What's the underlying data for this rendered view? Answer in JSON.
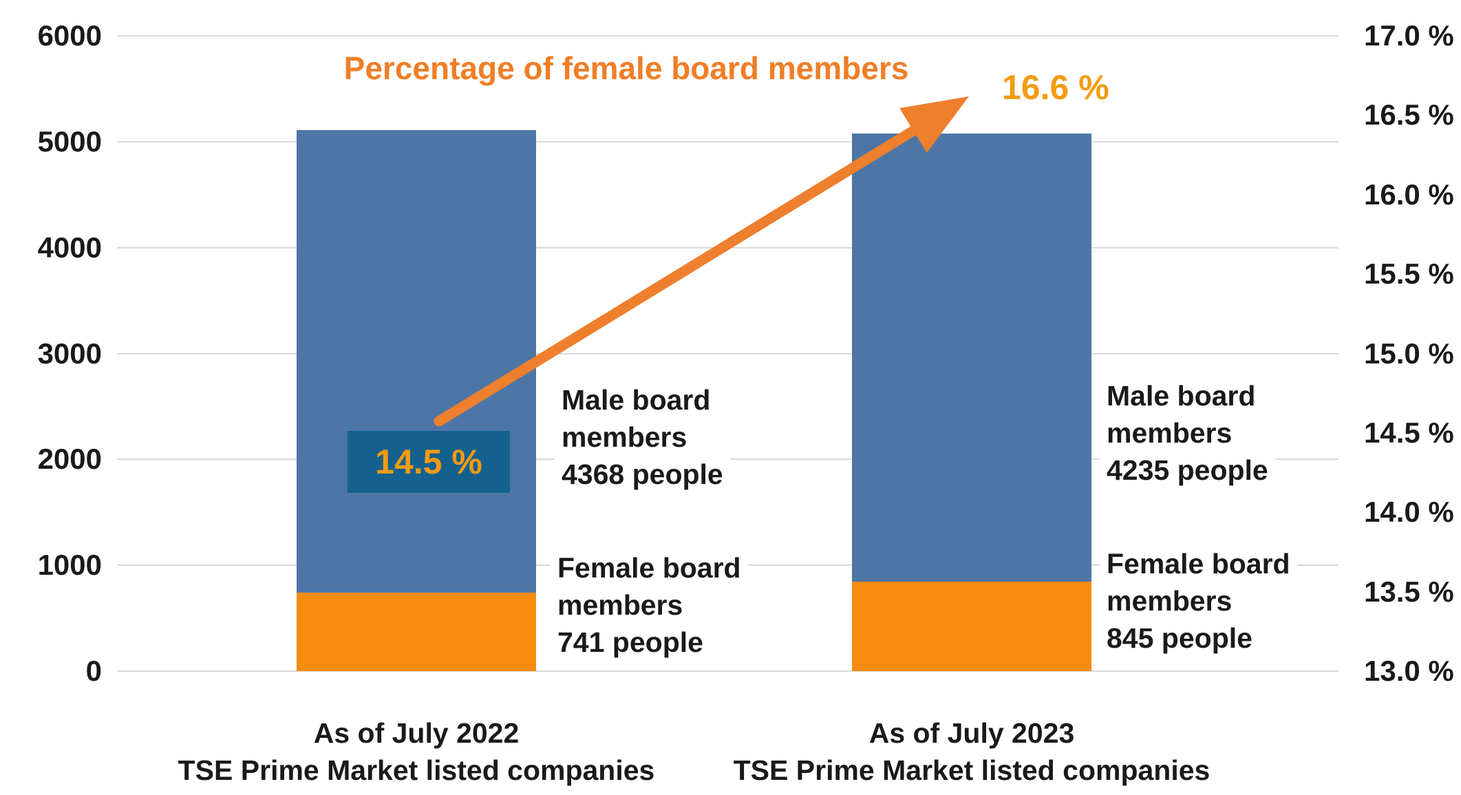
{
  "chart_data": {
    "type": "bar",
    "stacked": true,
    "title": "Percentage of female board members",
    "categories": [
      "As of July 2022\nTSE Prime Market listed companies",
      "As of July 2023\nTSE Prime Market listed companies"
    ],
    "series": [
      {
        "name": "Female board members",
        "values": [
          741,
          845
        ],
        "color": "#f68c10"
      },
      {
        "name": "Male board members",
        "values": [
          4368,
          4235
        ],
        "color": "#4d76a6"
      }
    ],
    "totals": [
      5109,
      5080
    ],
    "percent_series": {
      "name": "Percentage of female board members",
      "values_percent": [
        14.5,
        16.6
      ]
    },
    "left_axis": {
      "min": 0,
      "max": 6000,
      "step": 1000,
      "ticks": [
        "6000",
        "5000",
        "4000",
        "3000",
        "2000",
        "1000",
        "0"
      ]
    },
    "right_axis": {
      "min": 13.0,
      "max": 17.0,
      "step": 0.5,
      "ticks": [
        "17.0 %",
        "16.5 %",
        "16.0 %",
        "15.5 %",
        "15.0 %",
        "14.5 %",
        "14.0 %",
        "13.5 %",
        "13.0 %"
      ]
    },
    "annotations": {
      "pct_2022": "14.5 %",
      "pct_2023": "16.6 %",
      "male_2022": "Male board\nmembers\n4368 people",
      "female_2022": "Female board\nmembers\n741 people",
      "male_2023": "Male board\nmembers\n4235 people",
      "female_2023": "Female board\nmembers\n845 people"
    },
    "grid": true,
    "legend": "none",
    "colors": {
      "female_bar": "#f68c10",
      "male_bar": "#4d76a6",
      "arrow": "#ee7f2d",
      "title_text": "#f07e26",
      "pct_value_text": "#f39b12",
      "pct_box_bg": "#14618f",
      "gridline": "#d9d9d9",
      "text": "#1a1a1a"
    }
  }
}
